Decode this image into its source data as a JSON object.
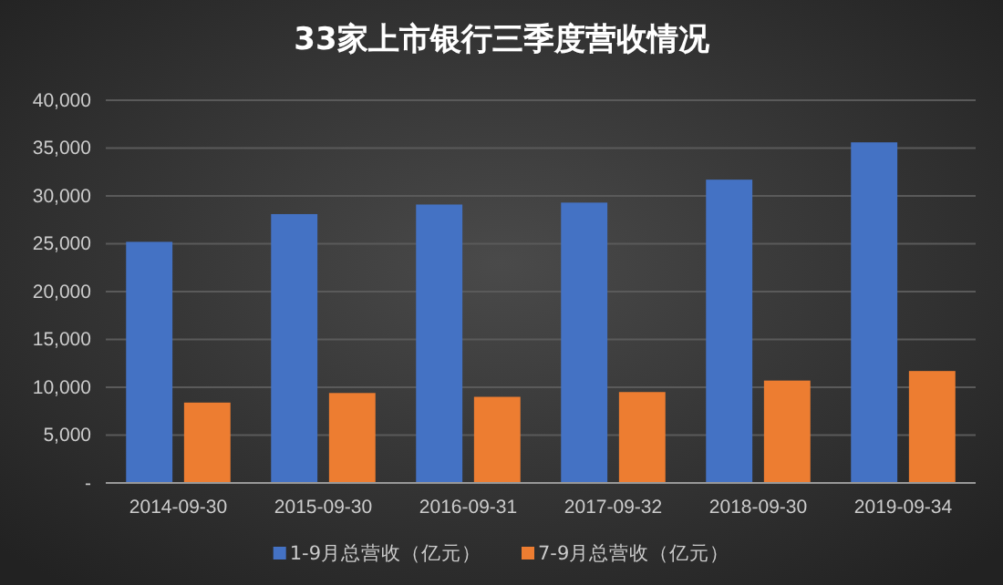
{
  "chart_data": {
    "type": "bar",
    "title": "33家上市银行三季度营收情况",
    "categories": [
      "2014-09-30",
      "2015-09-30",
      "2016-09-31",
      "2017-09-32",
      "2018-09-30",
      "2019-09-34"
    ],
    "series": [
      {
        "name": "1-9月总营收（亿元）",
        "color": "#4472c4",
        "values": [
          25200,
          28100,
          29100,
          29300,
          31700,
          35600
        ]
      },
      {
        "name": "7-9月总营收（亿元）",
        "color": "#ed7d31",
        "values": [
          8400,
          9400,
          9000,
          9500,
          10700,
          11700
        ]
      }
    ],
    "ylim": [
      0,
      40000
    ],
    "yticks": [
      {
        "value": 0,
        "label": "-"
      },
      {
        "value": 5000,
        "label": "5,000"
      },
      {
        "value": 10000,
        "label": "10,000"
      },
      {
        "value": 15000,
        "label": "15,000"
      },
      {
        "value": 20000,
        "label": "20,000"
      },
      {
        "value": 25000,
        "label": "25,000"
      },
      {
        "value": 30000,
        "label": "30,000"
      },
      {
        "value": 35000,
        "label": "35,000"
      },
      {
        "value": 40000,
        "label": "40,000"
      }
    ],
    "grid": "y",
    "legend": "bottom"
  }
}
